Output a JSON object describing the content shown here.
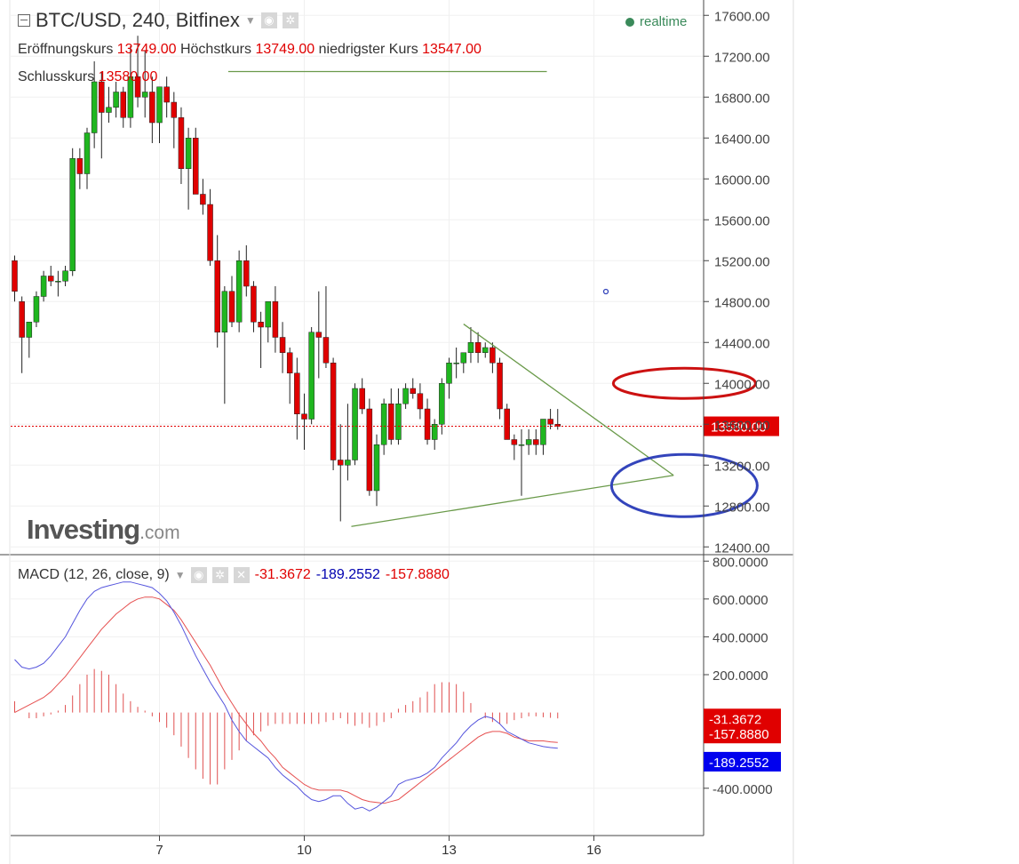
{
  "header": {
    "title": "BTC/USD, 240, Bitfinex",
    "realtime_label": "realtime"
  },
  "ohlc": {
    "open_label": "Eröffnungskurs",
    "open": "13749.00",
    "high_label": "Höchstkurs",
    "high": "13749.00",
    "low_label": "niedrigster Kurs",
    "low": "13547.00",
    "close_label": "Schlusskurs",
    "close": "13580.00"
  },
  "macd_legend": {
    "name": "MACD (12, 26, close, 9)",
    "hist": "-31.3672",
    "macd": "-189.2552",
    "signal": "-157.8880"
  },
  "logo": {
    "brand": "Investing",
    "suffix": ".com"
  },
  "colors": {
    "up": "#1fb61f",
    "down": "#e00000",
    "trendline": "#6a9a4a",
    "macd_line": "#5555dd",
    "signal_line": "#e65050",
    "circle_red": "#cc1111",
    "circle_blue": "#3344bb"
  },
  "chart_data": [
    {
      "type": "candlestick",
      "title": "BTC/USD, 240, Bitfinex",
      "y_ticks": [
        "17600.00",
        "17200.00",
        "16800.00",
        "16400.00",
        "16000.00",
        "15600.00",
        "15200.00",
        "14800.00",
        "14400.00",
        "14000.00",
        "13600.00",
        "13200.00",
        "12800.00",
        "12400.00"
      ],
      "ylim": [
        12350,
        17750
      ],
      "x_ticks": [
        {
          "label": "7",
          "index": 20
        },
        {
          "label": "10",
          "index": 40
        },
        {
          "label": "13",
          "index": 60
        },
        {
          "label": "16",
          "index": 80
        }
      ],
      "current_price": "13580.00",
      "candles": [
        {
          "o": 15200,
          "h": 15250,
          "l": 14800,
          "c": 14900
        },
        {
          "o": 14800,
          "h": 14850,
          "l": 14100,
          "c": 14450
        },
        {
          "o": 14450,
          "h": 14600,
          "l": 14250,
          "c": 14600
        },
        {
          "o": 14600,
          "h": 14900,
          "l": 14550,
          "c": 14850
        },
        {
          "o": 14850,
          "h": 15100,
          "l": 14800,
          "c": 15050
        },
        {
          "o": 15050,
          "h": 15150,
          "l": 14950,
          "c": 15000
        },
        {
          "o": 15000,
          "h": 15100,
          "l": 14850,
          "c": 15000
        },
        {
          "o": 15000,
          "h": 15150,
          "l": 14950,
          "c": 15100
        },
        {
          "o": 15100,
          "h": 16300,
          "l": 15050,
          "c": 16200
        },
        {
          "o": 16200,
          "h": 16300,
          "l": 15900,
          "c": 16050
        },
        {
          "o": 16050,
          "h": 16500,
          "l": 15900,
          "c": 16450
        },
        {
          "o": 16450,
          "h": 17150,
          "l": 16300,
          "c": 16950
        },
        {
          "o": 16950,
          "h": 17050,
          "l": 16200,
          "c": 16650
        },
        {
          "o": 16650,
          "h": 16900,
          "l": 16550,
          "c": 16700
        },
        {
          "o": 16700,
          "h": 16950,
          "l": 16600,
          "c": 16850
        },
        {
          "o": 16850,
          "h": 16900,
          "l": 16500,
          "c": 16600
        },
        {
          "o": 16600,
          "h": 17300,
          "l": 16500,
          "c": 17000
        },
        {
          "o": 17000,
          "h": 17400,
          "l": 16700,
          "c": 16800
        },
        {
          "o": 16800,
          "h": 17250,
          "l": 16600,
          "c": 16850
        },
        {
          "o": 16850,
          "h": 17000,
          "l": 16350,
          "c": 16550
        },
        {
          "o": 16550,
          "h": 16900,
          "l": 16350,
          "c": 16900
        },
        {
          "o": 16900,
          "h": 17000,
          "l": 16600,
          "c": 16750
        },
        {
          "o": 16750,
          "h": 16850,
          "l": 16300,
          "c": 16600
        },
        {
          "o": 16600,
          "h": 16700,
          "l": 15950,
          "c": 16100
        },
        {
          "o": 16100,
          "h": 16500,
          "l": 15700,
          "c": 16400
        },
        {
          "o": 16400,
          "h": 16500,
          "l": 15900,
          "c": 15850
        },
        {
          "o": 15850,
          "h": 16000,
          "l": 15650,
          "c": 15750
        },
        {
          "o": 15750,
          "h": 15900,
          "l": 15150,
          "c": 15200
        },
        {
          "o": 15200,
          "h": 15450,
          "l": 14350,
          "c": 14500
        },
        {
          "o": 14500,
          "h": 14950,
          "l": 13800,
          "c": 14900
        },
        {
          "o": 14900,
          "h": 15050,
          "l": 14550,
          "c": 14600
        },
        {
          "o": 14600,
          "h": 15300,
          "l": 14500,
          "c": 15200
        },
        {
          "o": 15200,
          "h": 15350,
          "l": 14850,
          "c": 14950
        },
        {
          "o": 14950,
          "h": 15000,
          "l": 14500,
          "c": 14600
        },
        {
          "o": 14600,
          "h": 14700,
          "l": 14150,
          "c": 14550
        },
        {
          "o": 14550,
          "h": 14800,
          "l": 14400,
          "c": 14800
        },
        {
          "o": 14800,
          "h": 14950,
          "l": 14300,
          "c": 14450
        },
        {
          "o": 14450,
          "h": 14600,
          "l": 14100,
          "c": 14300
        },
        {
          "o": 14300,
          "h": 14350,
          "l": 13800,
          "c": 14100
        },
        {
          "o": 14100,
          "h": 14250,
          "l": 13450,
          "c": 13700
        },
        {
          "o": 13700,
          "h": 13900,
          "l": 13350,
          "c": 13650
        },
        {
          "o": 13650,
          "h": 14550,
          "l": 13600,
          "c": 14500
        },
        {
          "o": 14500,
          "h": 14900,
          "l": 14050,
          "c": 14450
        },
        {
          "o": 14450,
          "h": 14950,
          "l": 14150,
          "c": 14200
        },
        {
          "o": 14200,
          "h": 14250,
          "l": 13150,
          "c": 13250
        },
        {
          "o": 13250,
          "h": 13600,
          "l": 12650,
          "c": 13200
        },
        {
          "o": 13200,
          "h": 13800,
          "l": 13050,
          "c": 13250
        },
        {
          "o": 13250,
          "h": 14000,
          "l": 13200,
          "c": 13950
        },
        {
          "o": 13950,
          "h": 14050,
          "l": 13700,
          "c": 13750
        },
        {
          "o": 13750,
          "h": 13850,
          "l": 12900,
          "c": 12950
        },
        {
          "o": 12950,
          "h": 13500,
          "l": 12800,
          "c": 13400
        },
        {
          "o": 13400,
          "h": 13850,
          "l": 13300,
          "c": 13800
        },
        {
          "o": 13800,
          "h": 13950,
          "l": 13400,
          "c": 13450
        },
        {
          "o": 13450,
          "h": 13950,
          "l": 13400,
          "c": 13800
        },
        {
          "o": 13800,
          "h": 14000,
          "l": 13750,
          "c": 13950
        },
        {
          "o": 13950,
          "h": 14050,
          "l": 13850,
          "c": 13900
        },
        {
          "o": 13900,
          "h": 14000,
          "l": 13650,
          "c": 13750
        },
        {
          "o": 13750,
          "h": 13850,
          "l": 13400,
          "c": 13450
        },
        {
          "o": 13450,
          "h": 13650,
          "l": 13350,
          "c": 13600
        },
        {
          "o": 13600,
          "h": 14050,
          "l": 13500,
          "c": 14000
        },
        {
          "o": 14000,
          "h": 14250,
          "l": 13850,
          "c": 14200
        },
        {
          "o": 14200,
          "h": 14350,
          "l": 14050,
          "c": 14200
        },
        {
          "o": 14200,
          "h": 14300,
          "l": 14100,
          "c": 14300
        },
        {
          "o": 14300,
          "h": 14550,
          "l": 14200,
          "c": 14400
        },
        {
          "o": 14400,
          "h": 14500,
          "l": 14200,
          "c": 14300
        },
        {
          "o": 14300,
          "h": 14400,
          "l": 14250,
          "c": 14350
        },
        {
          "o": 14350,
          "h": 14400,
          "l": 14100,
          "c": 14200
        },
        {
          "o": 14200,
          "h": 14250,
          "l": 13650,
          "c": 13750
        },
        {
          "o": 13750,
          "h": 13800,
          "l": 13450,
          "c": 13450
        },
        {
          "o": 13450,
          "h": 13500,
          "l": 13250,
          "c": 13400
        },
        {
          "o": 13400,
          "h": 13550,
          "l": 12900,
          "c": 13400
        },
        {
          "o": 13400,
          "h": 13550,
          "l": 13300,
          "c": 13450
        },
        {
          "o": 13450,
          "h": 13550,
          "l": 13300,
          "c": 13400
        },
        {
          "o": 13400,
          "h": 13650,
          "l": 13300,
          "c": 13650
        },
        {
          "o": 13650,
          "h": 13750,
          "l": 13550,
          "c": 13600
        },
        {
          "o": 13600,
          "h": 13749,
          "l": 13547,
          "c": 13580
        }
      ],
      "annotations": [
        {
          "type": "trendline",
          "from": {
            "x": 29.5,
            "y": 17050
          },
          "to": {
            "x": 73.5,
            "y": 17050
          }
        },
        {
          "type": "trendline",
          "from": {
            "x": 46.5,
            "y": 12600
          },
          "to": {
            "x": 91,
            "y": 13100
          }
        },
        {
          "type": "trendline",
          "from": {
            "x": 62,
            "y": 14580
          },
          "to": {
            "x": 91,
            "y": 13100
          }
        },
        {
          "type": "ellipse",
          "color": "red",
          "x": 92.5,
          "y": 14000
        },
        {
          "type": "ellipse",
          "color": "blue",
          "x": 92.5,
          "y": 13000
        }
      ]
    },
    {
      "type": "macd",
      "title": "MACD (12, 26, close, 9)",
      "y_ticks": [
        "800.0000",
        "600.0000",
        "400.0000",
        "200.0000",
        "-400.0000"
      ],
      "ylim": [
        -650,
        820
      ],
      "value_tags": [
        "-31.3672",
        "-157.8880",
        "-189.2552"
      ],
      "macd": [
        280,
        240,
        230,
        240,
        260,
        300,
        350,
        400,
        470,
        540,
        600,
        640,
        660,
        670,
        680,
        690,
        690,
        680,
        670,
        660,
        630,
        590,
        530,
        460,
        380,
        300,
        230,
        160,
        100,
        40,
        -40,
        -100,
        -150,
        -180,
        -210,
        -240,
        -290,
        -330,
        -360,
        -390,
        -430,
        -460,
        -470,
        -460,
        -440,
        -440,
        -480,
        -510,
        -500,
        -520,
        -500,
        -470,
        -440,
        -380,
        -360,
        -350,
        -340,
        -320,
        -290,
        -240,
        -200,
        -160,
        -110,
        -70,
        -40,
        -20,
        -30,
        -60,
        -100,
        -120,
        -140,
        -160,
        -170,
        -180,
        -185,
        -189
      ],
      "signal": [
        0,
        20,
        40,
        60,
        80,
        110,
        150,
        190,
        240,
        290,
        340,
        390,
        440,
        480,
        520,
        550,
        580,
        600,
        610,
        610,
        600,
        570,
        540,
        490,
        430,
        370,
        310,
        250,
        180,
        110,
        50,
        -10,
        -60,
        -110,
        -150,
        -200,
        -240,
        -290,
        -320,
        -350,
        -380,
        -400,
        -410,
        -410,
        -410,
        -410,
        -420,
        -440,
        -460,
        -470,
        -475,
        -480,
        -470,
        -460,
        -430,
        -400,
        -370,
        -340,
        -310,
        -280,
        -250,
        -220,
        -190,
        -160,
        -130,
        -110,
        -100,
        -100,
        -110,
        -130,
        -140,
        -150,
        -150,
        -150,
        -155,
        -158
      ],
      "histogram": [
        60,
        0,
        -30,
        -30,
        -20,
        -10,
        10,
        40,
        90,
        150,
        200,
        230,
        220,
        200,
        150,
        100,
        60,
        30,
        10,
        -20,
        -50,
        -80,
        -120,
        -180,
        -240,
        -300,
        -350,
        -380,
        -380,
        -300,
        -250,
        -200,
        -150,
        -120,
        -100,
        -70,
        -60,
        -60,
        -60,
        -60,
        -60,
        -60,
        -60,
        -50,
        -40,
        -30,
        -60,
        -70,
        -60,
        -80,
        -70,
        -50,
        -30,
        20,
        40,
        60,
        80,
        110,
        150,
        160,
        160,
        150,
        110,
        50,
        0,
        -30,
        -50,
        -60,
        -60,
        -40,
        -30,
        -20,
        -20,
        -25,
        -28,
        -31
      ]
    }
  ]
}
